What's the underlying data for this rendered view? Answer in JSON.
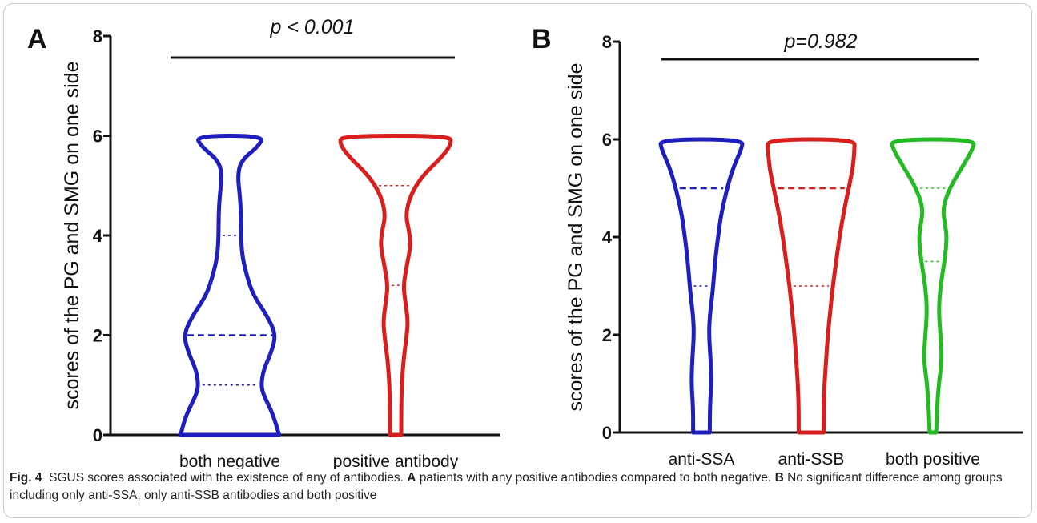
{
  "chart_data": [
    {
      "type": "violin",
      "panel": "A",
      "ylabel": "scores of the PG and SMG on one side",
      "ylim": [
        0,
        8
      ],
      "yticks": [
        0,
        2,
        4,
        6,
        8
      ],
      "annotation": "p < 0.001",
      "grid": false,
      "categories": [
        "both negative",
        "positive antibody"
      ],
      "series": [
        {
          "category": "both negative",
          "color": "#1f1fbf",
          "min": 0,
          "max": 6,
          "quartiles": [
            1,
            2,
            4
          ],
          "density": [
            [
              0,
              0.88
            ],
            [
              0.4,
              0.78
            ],
            [
              0.8,
              0.6
            ],
            [
              1.0,
              0.56
            ],
            [
              1.3,
              0.6
            ],
            [
              1.6,
              0.72
            ],
            [
              2.0,
              0.83
            ],
            [
              2.4,
              0.66
            ],
            [
              2.8,
              0.42
            ],
            [
              3.2,
              0.3
            ],
            [
              3.6,
              0.22
            ],
            [
              4.0,
              0.2
            ],
            [
              4.4,
              0.2
            ],
            [
              4.8,
              0.18
            ],
            [
              5.2,
              0.14
            ],
            [
              5.5,
              0.2
            ],
            [
              5.8,
              0.52
            ],
            [
              6.0,
              0.6
            ]
          ]
        },
        {
          "category": "positive antibody",
          "color": "#d91e1e",
          "min": 0,
          "max": 6,
          "quartiles": [
            3,
            3,
            5
          ],
          "density": [
            [
              0,
              0.1
            ],
            [
              0.5,
              0.1
            ],
            [
              1.0,
              0.11
            ],
            [
              1.5,
              0.14
            ],
            [
              2.0,
              0.2
            ],
            [
              2.3,
              0.22
            ],
            [
              2.7,
              0.17
            ],
            [
              3.0,
              0.14
            ],
            [
              3.4,
              0.2
            ],
            [
              3.8,
              0.27
            ],
            [
              4.1,
              0.24
            ],
            [
              4.4,
              0.18
            ],
            [
              4.8,
              0.26
            ],
            [
              5.2,
              0.48
            ],
            [
              5.6,
              0.85
            ],
            [
              5.85,
              1.0
            ],
            [
              6.0,
              0.96
            ]
          ]
        }
      ]
    },
    {
      "type": "violin",
      "panel": "B",
      "ylabel": "scores of the PG and SMG on one side",
      "ylim": [
        0,
        8
      ],
      "yticks": [
        0,
        2,
        4,
        6,
        8
      ],
      "annotation": "p=0.982",
      "grid": false,
      "categories": [
        "anti-SSA",
        "anti-SSB",
        "both positive"
      ],
      "series": [
        {
          "category": "anti-SSA",
          "color": "#1f1fbf",
          "min": 0,
          "max": 6,
          "quartiles": [
            3,
            5,
            5
          ],
          "density": [
            [
              0,
              0.2
            ],
            [
              0.5,
              0.2
            ],
            [
              1.0,
              0.24
            ],
            [
              1.5,
              0.22
            ],
            [
              2.0,
              0.18
            ],
            [
              2.4,
              0.2
            ],
            [
              2.8,
              0.26
            ],
            [
              3.2,
              0.3
            ],
            [
              3.6,
              0.34
            ],
            [
              4.0,
              0.4
            ],
            [
              4.4,
              0.46
            ],
            [
              4.8,
              0.56
            ],
            [
              5.2,
              0.68
            ],
            [
              5.5,
              0.8
            ],
            [
              5.8,
              0.96
            ],
            [
              6.0,
              1.0
            ]
          ]
        },
        {
          "category": "anti-SSB",
          "color": "#d91e1e",
          "min": 0,
          "max": 6,
          "quartiles": [
            3,
            5,
            5
          ],
          "density": [
            [
              0,
              0.3
            ],
            [
              0.5,
              0.3
            ],
            [
              1.0,
              0.32
            ],
            [
              1.5,
              0.36
            ],
            [
              2.0,
              0.4
            ],
            [
              2.5,
              0.46
            ],
            [
              3.0,
              0.52
            ],
            [
              3.5,
              0.6
            ],
            [
              4.0,
              0.68
            ],
            [
              4.5,
              0.78
            ],
            [
              5.0,
              0.9
            ],
            [
              5.4,
              1.0
            ],
            [
              5.8,
              1.04
            ],
            [
              6.0,
              1.04
            ]
          ]
        },
        {
          "category": "both positive",
          "color": "#22bb22",
          "min": 0,
          "max": 6,
          "quartiles": [
            3.5,
            3.5,
            5
          ],
          "density": [
            [
              0,
              0.08
            ],
            [
              0.5,
              0.1
            ],
            [
              1.0,
              0.14
            ],
            [
              1.5,
              0.22
            ],
            [
              2.0,
              0.18
            ],
            [
              2.5,
              0.14
            ],
            [
              3.0,
              0.18
            ],
            [
              3.5,
              0.28
            ],
            [
              4.0,
              0.34
            ],
            [
              4.3,
              0.28
            ],
            [
              4.6,
              0.24
            ],
            [
              5.0,
              0.4
            ],
            [
              5.4,
              0.68
            ],
            [
              5.8,
              0.96
            ],
            [
              6.0,
              1.0
            ]
          ]
        }
      ]
    }
  ],
  "caption": {
    "label": "Fig. 4",
    "text_1": "SGUS scores associated with the existence of any of antibodies.",
    "a_label": "A",
    "text_a": "patients with any positive antibodies compared to both negative.",
    "b_label": "B",
    "text_b": "No significant difference among groups including only anti-SSA, only anti-SSB antibodies and both positive"
  }
}
